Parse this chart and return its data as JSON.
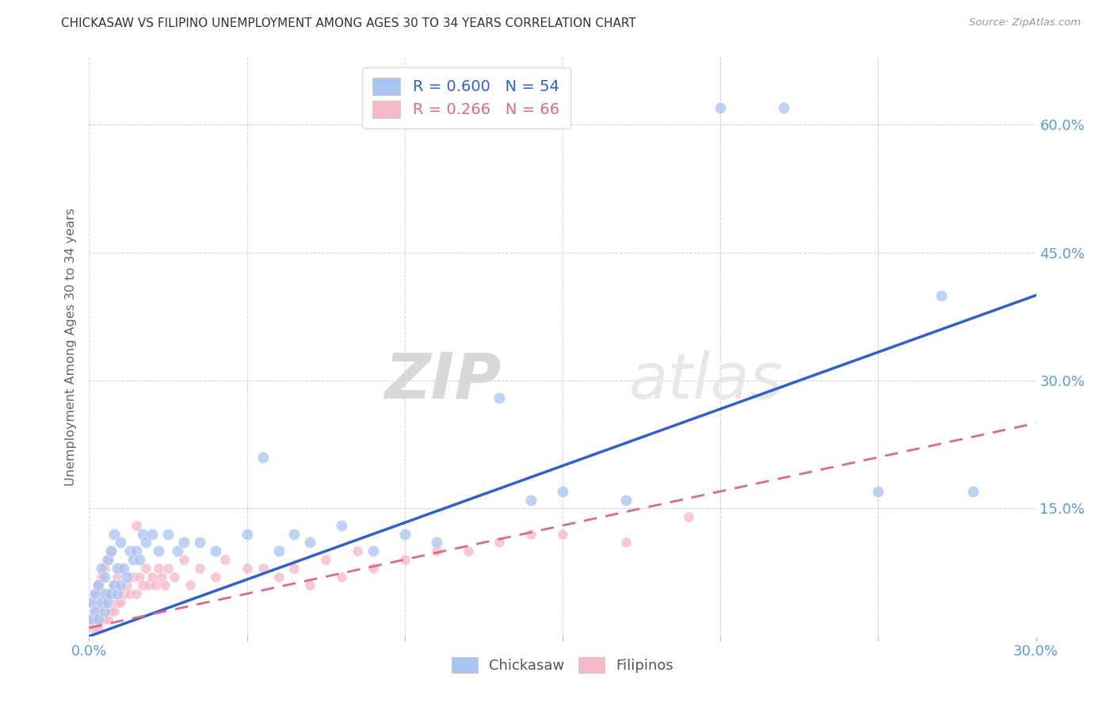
{
  "title": "CHICKASAW VS FILIPINO UNEMPLOYMENT AMONG AGES 30 TO 34 YEARS CORRELATION CHART",
  "source": "Source: ZipAtlas.com",
  "ylabel": "Unemployment Among Ages 30 to 34 years",
  "xlim": [
    0.0,
    0.3
  ],
  "ylim": [
    0.0,
    0.68
  ],
  "xticks": [
    0.0,
    0.05,
    0.1,
    0.15,
    0.2,
    0.25,
    0.3
  ],
  "yticks_right": [
    0.0,
    0.15,
    0.3,
    0.45,
    0.6
  ],
  "ytick_right_labels": [
    "",
    "15.0%",
    "30.0%",
    "45.0%",
    "60.0%"
  ],
  "chickasaw_R": 0.6,
  "chickasaw_N": 54,
  "filipino_R": 0.266,
  "filipino_N": 66,
  "chickasaw_color": "#a8c4f0",
  "filipino_color": "#f5b8c8",
  "chickasaw_line_color": "#3060d0",
  "filipino_line_color": "#e06888",
  "legend_labels": [
    "Chickasaw",
    "Filipinos"
  ],
  "watermark_zip": "ZIP",
  "watermark_atlas": "atlas",
  "chickasaw_x": [
    0.001,
    0.001,
    0.002,
    0.002,
    0.003,
    0.003,
    0.004,
    0.004,
    0.005,
    0.005,
    0.005,
    0.006,
    0.006,
    0.007,
    0.007,
    0.008,
    0.008,
    0.009,
    0.009,
    0.01,
    0.01,
    0.011,
    0.012,
    0.013,
    0.014,
    0.015,
    0.016,
    0.017,
    0.018,
    0.02,
    0.022,
    0.025,
    0.028,
    0.03,
    0.035,
    0.04,
    0.05,
    0.055,
    0.06,
    0.065,
    0.07,
    0.08,
    0.09,
    0.1,
    0.11,
    0.13,
    0.14,
    0.15,
    0.17,
    0.2,
    0.22,
    0.25,
    0.27,
    0.28
  ],
  "chickasaw_y": [
    0.02,
    0.04,
    0.03,
    0.05,
    0.02,
    0.06,
    0.04,
    0.08,
    0.03,
    0.05,
    0.07,
    0.04,
    0.09,
    0.05,
    0.1,
    0.06,
    0.12,
    0.05,
    0.08,
    0.06,
    0.11,
    0.08,
    0.07,
    0.1,
    0.09,
    0.1,
    0.09,
    0.12,
    0.11,
    0.12,
    0.1,
    0.12,
    0.1,
    0.11,
    0.11,
    0.1,
    0.12,
    0.21,
    0.1,
    0.12,
    0.11,
    0.13,
    0.1,
    0.12,
    0.11,
    0.28,
    0.16,
    0.17,
    0.16,
    0.62,
    0.62,
    0.17,
    0.4,
    0.17
  ],
  "filipino_x": [
    0.001,
    0.001,
    0.001,
    0.002,
    0.002,
    0.002,
    0.003,
    0.003,
    0.003,
    0.004,
    0.004,
    0.004,
    0.005,
    0.005,
    0.005,
    0.006,
    0.006,
    0.006,
    0.007,
    0.007,
    0.007,
    0.008,
    0.008,
    0.009,
    0.009,
    0.01,
    0.01,
    0.011,
    0.012,
    0.013,
    0.014,
    0.015,
    0.015,
    0.016,
    0.017,
    0.018,
    0.019,
    0.02,
    0.021,
    0.022,
    0.023,
    0.024,
    0.025,
    0.027,
    0.03,
    0.032,
    0.035,
    0.04,
    0.043,
    0.05,
    0.055,
    0.06,
    0.065,
    0.07,
    0.075,
    0.08,
    0.085,
    0.09,
    0.1,
    0.11,
    0.12,
    0.13,
    0.14,
    0.15,
    0.17,
    0.19
  ],
  "filipino_y": [
    0.01,
    0.02,
    0.04,
    0.01,
    0.03,
    0.05,
    0.01,
    0.03,
    0.06,
    0.02,
    0.04,
    0.07,
    0.02,
    0.04,
    0.08,
    0.02,
    0.05,
    0.09,
    0.03,
    0.05,
    0.1,
    0.03,
    0.06,
    0.04,
    0.07,
    0.04,
    0.08,
    0.05,
    0.06,
    0.05,
    0.07,
    0.05,
    0.13,
    0.07,
    0.06,
    0.08,
    0.06,
    0.07,
    0.06,
    0.08,
    0.07,
    0.06,
    0.08,
    0.07,
    0.09,
    0.06,
    0.08,
    0.07,
    0.09,
    0.08,
    0.08,
    0.07,
    0.08,
    0.06,
    0.09,
    0.07,
    0.1,
    0.08,
    0.09,
    0.1,
    0.1,
    0.11,
    0.12,
    0.12,
    0.11,
    0.14
  ],
  "chick_trend_x0": 0.0,
  "chick_trend_y0": 0.0,
  "chick_trend_x1": 0.3,
  "chick_trend_y1": 0.4,
  "fil_trend_x0": 0.0,
  "fil_trend_y0": 0.01,
  "fil_trend_x1": 0.3,
  "fil_trend_y1": 0.25
}
